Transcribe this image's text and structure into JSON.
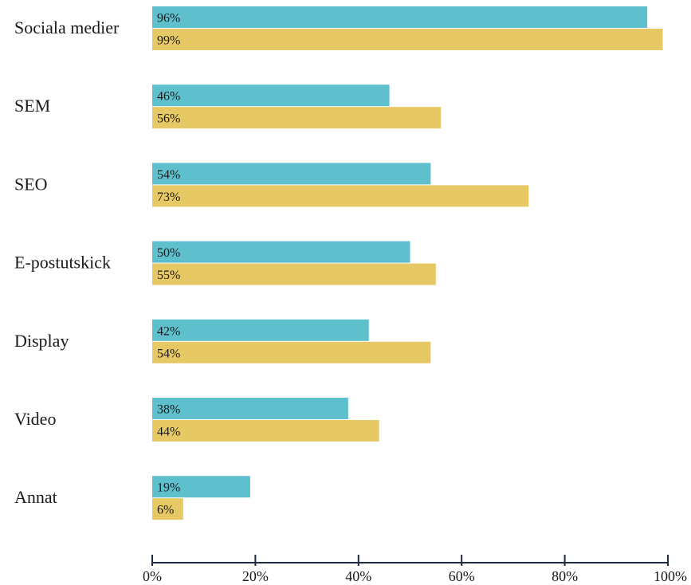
{
  "chart_data": {
    "type": "bar",
    "orientation": "horizontal",
    "categories": [
      "Sociala medier",
      "SEM",
      "SEO",
      "E-postutskick",
      "Display",
      "Video",
      "Annat"
    ],
    "series": [
      {
        "color": "#5ebfcd",
        "values": [
          96,
          46,
          54,
          50,
          42,
          38,
          19
        ],
        "labels": [
          "96%",
          "46%",
          "54%",
          "50%",
          "42%",
          "38%",
          "19%"
        ]
      },
      {
        "color": "#e6c865",
        "values": [
          99,
          56,
          73,
          55,
          54,
          44,
          6
        ],
        "labels": [
          "99%",
          "56%",
          "73%",
          "55%",
          "54%",
          "44%",
          "6%"
        ]
      }
    ],
    "xlim": [
      0,
      100
    ],
    "xticks": [
      0,
      20,
      40,
      60,
      80,
      100
    ],
    "xtick_labels": [
      "0%",
      "20%",
      "40%",
      "60%",
      "80%",
      "100%"
    ],
    "grid": false,
    "legend": "none",
    "axis_color": "#1f2a44"
  }
}
